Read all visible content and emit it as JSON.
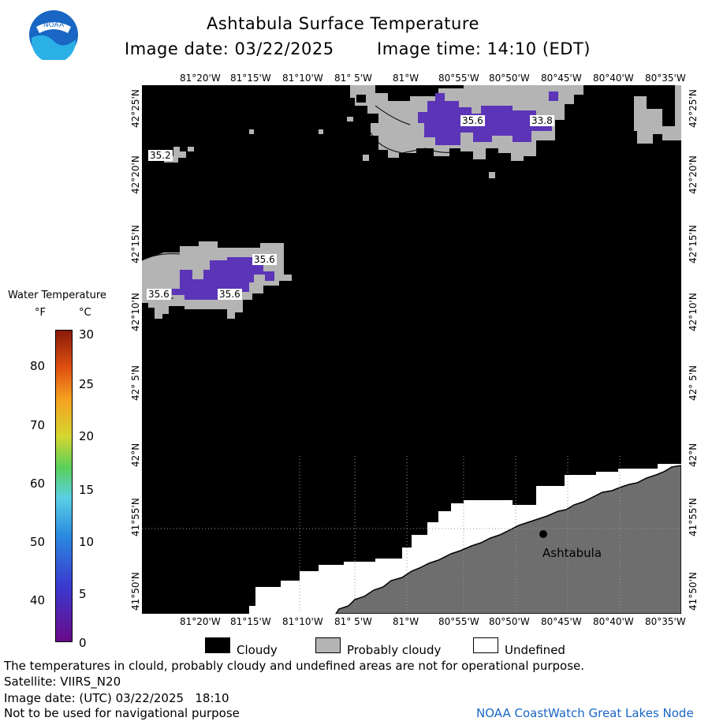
{
  "header": {
    "title": "Ashtabula Surface Temperature",
    "image_date": "Image date: 03/22/2025",
    "image_time": "Image time: 14:10 (EDT)",
    "logo_text": "NOAA"
  },
  "scale": {
    "title": "Water Temperature",
    "f_unit": "°F",
    "c_unit": "°C",
    "f_ticks": [
      "80",
      "70",
      "60",
      "50",
      "40"
    ],
    "c_ticks": [
      "30",
      "25",
      "20",
      "15",
      "10",
      "5",
      "0"
    ]
  },
  "map": {
    "lon_labels": [
      "81°20'W",
      "81°15'W",
      "81°10'W",
      "81° 5'W",
      "81°W",
      "80°55'W",
      "80°50'W",
      "80°45'W",
      "80°40'W",
      "80°35'W"
    ],
    "lat_labels": [
      "42°25'N",
      "42°20'N",
      "42°15'N",
      "42°10'N",
      "42° 5'N",
      "42°N",
      "41°55'N",
      "41°50'N"
    ],
    "city": "Ashtabula",
    "temp_labels": [
      "35.2",
      "35.6",
      "33.8",
      "35.6",
      "35.6",
      "35.6"
    ],
    "colors": {
      "cloud": "#000000",
      "probably_cloudy": "#b4b4b4",
      "land": "#6e6e6e",
      "water_cold": "#5b34b8"
    }
  },
  "legend": {
    "cloudy": "Cloudy",
    "probably_cloudy": "Probably cloudy",
    "undefined": "Undefined"
  },
  "footer": {
    "disclaimer": "The temperatures in clould, probably cloudy and undefined areas are not for operational purpose.",
    "satellite": "Satellite: VIIRS_N20",
    "utc_date": "Image date: (UTC) 03/22/2025   18:10",
    "nav_warning": "Not to be used for navigational purpose",
    "credit": "NOAA CoastWatch Great Lakes Node"
  }
}
